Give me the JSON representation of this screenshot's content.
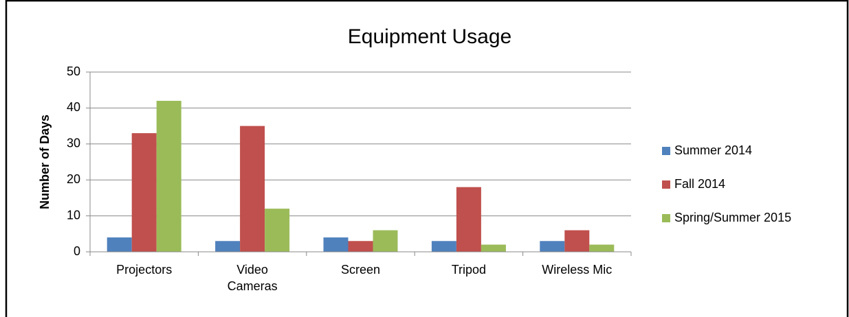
{
  "chart_data": {
    "type": "bar",
    "title": "Equipment Usage",
    "y_label": "Number of Days",
    "categories": [
      "Projectors",
      "Video Cameras",
      "Screen",
      "Tripod",
      "Wireless Mic"
    ],
    "series": [
      {
        "name": "Summer 2014",
        "color": "#4f81bd",
        "values": [
          4,
          3,
          4,
          3,
          3
        ]
      },
      {
        "name": "Fall 2014",
        "color": "#c0504d",
        "values": [
          33,
          35,
          3,
          18,
          6
        ]
      },
      {
        "name": "Spring/Summer 2015",
        "color": "#9bbb59",
        "values": [
          42,
          12,
          6,
          2,
          2
        ]
      }
    ],
    "ylim": [
      0,
      50
    ],
    "yticks": [
      0,
      10,
      20,
      30,
      40,
      50
    ],
    "grid": true,
    "legend": "right"
  }
}
